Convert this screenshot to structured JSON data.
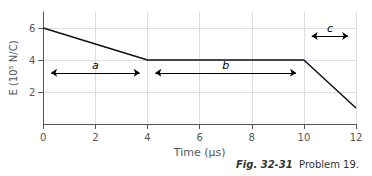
{
  "chart_data": {
    "type": "line",
    "x": [
      0,
      4,
      4,
      10,
      10,
      12
    ],
    "values": [
      6,
      4,
      4,
      4,
      4,
      1
    ],
    "color": "#111111",
    "xlim": [
      0,
      12
    ],
    "ylim": [
      0,
      7
    ],
    "xticks": [
      0,
      2,
      4,
      6,
      8,
      10,
      12
    ],
    "yticks": [
      2,
      4,
      6
    ],
    "xlabel": "Time (μs)",
    "ylabel": "E (10⁵ N/C)",
    "grid": true,
    "annotations": [
      {
        "text": "a",
        "x": [
          0.3,
          3.7
        ],
        "y": 3.2
      },
      {
        "text": "b",
        "x": [
          4.3,
          9.7
        ],
        "y": 3.2
      },
      {
        "text": "c",
        "x": [
          10.3,
          11.7
        ],
        "y": 5.5
      }
    ],
    "caption": [
      "Fig. 32-31",
      "Problem 19."
    ]
  }
}
